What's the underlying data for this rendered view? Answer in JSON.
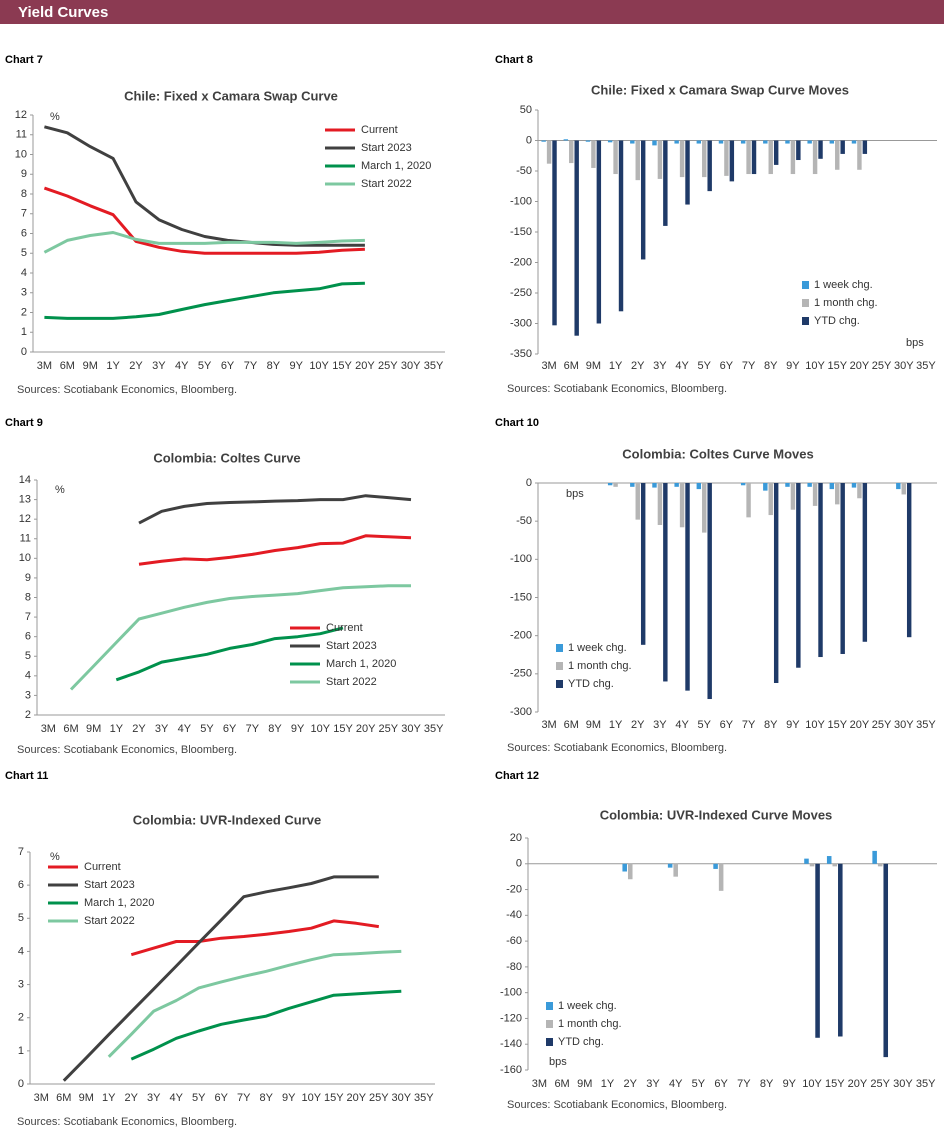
{
  "header": {
    "title": "Yield Curves"
  },
  "chart_data": [
    {
      "type": "line",
      "label": "Chart 7",
      "title": "Chile: Fixed x Camara Swap Curve",
      "unit_label": "%",
      "source": "Sources: Scotiabank Economics, Bloomberg.",
      "legend": "upper right",
      "categories": [
        "3M",
        "6M",
        "9M",
        "1Y",
        "2Y",
        "3Y",
        "4Y",
        "5Y",
        "6Y",
        "7Y",
        "8Y",
        "9Y",
        "10Y",
        "15Y",
        "20Y",
        "25Y",
        "30Y",
        "35Y"
      ],
      "ylim": [
        0,
        12
      ],
      "yticks": [
        0,
        1,
        2,
        3,
        4,
        5,
        6,
        7,
        8,
        9,
        10,
        11,
        12
      ],
      "series": [
        {
          "name": "Current",
          "color": "#e31b23",
          "values": [
            8.3,
            7.9,
            7.4,
            6.95,
            5.6,
            5.3,
            5.1,
            5.0,
            5.0,
            5.0,
            5.0,
            5.0,
            5.05,
            5.15,
            5.2,
            null,
            null,
            null
          ]
        },
        {
          "name": "Start 2023",
          "color": "#404040",
          "values": [
            11.4,
            11.1,
            10.4,
            9.8,
            7.6,
            6.7,
            6.2,
            5.85,
            5.65,
            5.55,
            5.45,
            5.4,
            5.4,
            5.4,
            5.4,
            null,
            null,
            null
          ]
        },
        {
          "name": "March 1, 2020",
          "color": "#00914c",
          "values": [
            1.75,
            1.7,
            1.7,
            1.7,
            1.78,
            1.9,
            2.15,
            2.4,
            2.6,
            2.8,
            3.0,
            3.1,
            3.2,
            3.45,
            3.48,
            null,
            null,
            null
          ]
        },
        {
          "name": "Start 2022",
          "color": "#7dc8a0",
          "values": [
            5.05,
            5.65,
            5.9,
            6.05,
            5.7,
            5.5,
            5.5,
            5.5,
            5.55,
            5.55,
            5.55,
            5.5,
            5.55,
            5.62,
            5.65,
            null,
            null,
            null
          ]
        }
      ]
    },
    {
      "type": "bar",
      "label": "Chart 8",
      "title": "Chile: Fixed x Camara Swap Curve Moves",
      "unit_label": "bps",
      "source": "Sources: Scotiabank Economics, Bloomberg.",
      "legend": "lower right",
      "categories": [
        "3M",
        "6M",
        "9M",
        "1Y",
        "2Y",
        "3Y",
        "4Y",
        "5Y",
        "6Y",
        "7Y",
        "8Y",
        "9Y",
        "10Y",
        "15Y",
        "20Y",
        "25Y",
        "30Y",
        "35Y"
      ],
      "ylim": [
        -350,
        50
      ],
      "yticks": [
        -350,
        -300,
        -250,
        -200,
        -150,
        -100,
        -50,
        0,
        50
      ],
      "series": [
        {
          "name": "1 week chg.",
          "color": "#3a9ad9",
          "values": [
            -2,
            2,
            -2,
            -3,
            -5,
            -8,
            -5,
            -5,
            -5,
            -5,
            -5,
            -5,
            -5,
            -5,
            -5,
            null,
            null,
            null
          ]
        },
        {
          "name": "1 month chg.",
          "color": "#b5b5b5",
          "values": [
            -38,
            -37,
            -45,
            -55,
            -65,
            -63,
            -60,
            -60,
            -58,
            -55,
            -55,
            -55,
            -55,
            -48,
            -48,
            null,
            null,
            null
          ]
        },
        {
          "name": "YTD chg.",
          "color": "#1f3a68",
          "values": [
            -303,
            -320,
            -300,
            -280,
            -195,
            -140,
            -105,
            -83,
            -67,
            -55,
            -40,
            -32,
            -30,
            -22,
            -22,
            null,
            null,
            null
          ]
        }
      ]
    },
    {
      "type": "line",
      "label": "Chart 9",
      "title": "Colombia: Coltes Curve",
      "unit_label": "%",
      "source": "Sources: Scotiabank Economics, Bloomberg.",
      "legend": "lower right",
      "categories": [
        "3M",
        "6M",
        "9M",
        "1Y",
        "2Y",
        "3Y",
        "4Y",
        "5Y",
        "6Y",
        "7Y",
        "8Y",
        "9Y",
        "10Y",
        "15Y",
        "20Y",
        "25Y",
        "30Y",
        "35Y"
      ],
      "ylim": [
        2,
        14
      ],
      "yticks": [
        2,
        3,
        4,
        5,
        6,
        7,
        8,
        9,
        10,
        11,
        12,
        13,
        14
      ],
      "series": [
        {
          "name": "Current",
          "color": "#e31b23",
          "values": [
            null,
            null,
            null,
            null,
            9.7,
            9.85,
            9.97,
            9.93,
            10.05,
            10.2,
            10.4,
            10.55,
            10.75,
            10.78,
            11.15,
            11.1,
            11.05,
            null
          ]
        },
        {
          "name": "Start 2023",
          "color": "#404040",
          "values": [
            null,
            null,
            null,
            null,
            11.8,
            12.4,
            12.65,
            12.8,
            12.85,
            12.88,
            12.92,
            12.95,
            13.0,
            13.0,
            13.2,
            13.1,
            13.0,
            null
          ]
        },
        {
          "name": "March 1, 2020",
          "color": "#00914c",
          "values": [
            null,
            null,
            null,
            3.8,
            4.2,
            4.7,
            4.9,
            5.1,
            5.4,
            5.6,
            5.9,
            6.0,
            6.15,
            6.45,
            null,
            null,
            null,
            null
          ]
        },
        {
          "name": "Start 2022",
          "color": "#7dc8a0",
          "values": [
            null,
            3.3,
            4.5,
            5.7,
            6.9,
            7.2,
            7.5,
            7.75,
            7.95,
            8.05,
            8.12,
            8.2,
            8.35,
            8.5,
            8.55,
            8.6,
            8.6,
            null
          ]
        }
      ]
    },
    {
      "type": "bar",
      "label": "Chart 10",
      "title": "Colombia: Coltes Curve Moves",
      "unit_label": "bps",
      "source": "Sources: Scotiabank Economics, Bloomberg.",
      "legend": "lower left",
      "categories": [
        "3M",
        "6M",
        "9M",
        "1Y",
        "2Y",
        "3Y",
        "4Y",
        "5Y",
        "6Y",
        "7Y",
        "8Y",
        "9Y",
        "10Y",
        "15Y",
        "20Y",
        "25Y",
        "30Y",
        "35Y"
      ],
      "ylim": [
        -300,
        0
      ],
      "yticks": [
        -300,
        -250,
        -200,
        -150,
        -100,
        -50,
        0
      ],
      "series": [
        {
          "name": "1 week chg.",
          "color": "#3a9ad9",
          "values": [
            null,
            null,
            null,
            -3,
            -5,
            -6,
            -5,
            -8,
            null,
            -3,
            -10,
            -5,
            -5,
            -8,
            -6,
            null,
            -8,
            null
          ]
        },
        {
          "name": "1 month chg.",
          "color": "#b5b5b5",
          "values": [
            null,
            null,
            null,
            -5,
            -48,
            -55,
            -58,
            -65,
            null,
            -45,
            -42,
            -35,
            -30,
            -28,
            -20,
            null,
            -15,
            null
          ]
        },
        {
          "name": "YTD chg.",
          "color": "#1f3a68",
          "values": [
            null,
            null,
            null,
            null,
            -212,
            -260,
            -272,
            -283,
            null,
            null,
            -262,
            -242,
            -228,
            -224,
            -208,
            null,
            -202,
            null
          ]
        }
      ]
    },
    {
      "type": "line",
      "label": "Chart 11",
      "title": "Colombia: UVR-Indexed Curve",
      "unit_label": "%",
      "source": "Sources: Scotiabank Economics, Bloomberg.",
      "legend": "upper left",
      "categories": [
        "3M",
        "6M",
        "9M",
        "1Y",
        "2Y",
        "3Y",
        "4Y",
        "5Y",
        "6Y",
        "7Y",
        "8Y",
        "9Y",
        "10Y",
        "15Y",
        "20Y",
        "25Y",
        "30Y",
        "35Y"
      ],
      "ylim": [
        0,
        7
      ],
      "yticks": [
        0,
        1,
        2,
        3,
        4,
        5,
        6,
        7
      ],
      "series": [
        {
          "name": "Current",
          "color": "#e31b23",
          "values": [
            null,
            null,
            null,
            null,
            3.9,
            4.1,
            4.3,
            4.3,
            4.4,
            4.45,
            4.52,
            4.6,
            4.7,
            4.92,
            4.85,
            4.75,
            null,
            null
          ]
        },
        {
          "name": "Start 2023",
          "color": "#404040",
          "values": [
            null,
            0.1,
            0.79,
            1.49,
            2.18,
            2.87,
            3.56,
            4.26,
            4.95,
            5.65,
            5.8,
            5.92,
            6.05,
            6.25,
            6.25,
            6.25,
            null,
            null
          ]
        },
        {
          "name": "March 1, 2020",
          "color": "#00914c",
          "values": [
            null,
            null,
            null,
            null,
            0.75,
            1.05,
            1.38,
            1.6,
            1.8,
            1.93,
            2.05,
            2.28,
            2.48,
            2.68,
            2.72,
            2.76,
            2.8,
            null
          ]
        },
        {
          "name": "Start 2022",
          "color": "#7dc8a0",
          "values": [
            null,
            null,
            null,
            0.82,
            1.5,
            2.2,
            2.52,
            2.9,
            3.08,
            3.25,
            3.4,
            3.58,
            3.75,
            3.9,
            3.93,
            3.97,
            4.0,
            null
          ]
        }
      ]
    },
    {
      "type": "bar",
      "label": "Chart 12",
      "title": "Colombia: UVR-Indexed Curve Moves",
      "unit_label": "bps",
      "source": "Sources: Scotiabank Economics, Bloomberg.",
      "legend": "lower left",
      "categories": [
        "3M",
        "6M",
        "9M",
        "1Y",
        "2Y",
        "3Y",
        "4Y",
        "5Y",
        "6Y",
        "7Y",
        "8Y",
        "9Y",
        "10Y",
        "15Y",
        "20Y",
        "25Y",
        "30Y",
        "35Y"
      ],
      "ylim": [
        -160,
        20
      ],
      "yticks": [
        -160,
        -140,
        -120,
        -100,
        -80,
        -60,
        -40,
        -20,
        0,
        20
      ],
      "series": [
        {
          "name": "1 week chg.",
          "color": "#3a9ad9",
          "values": [
            null,
            null,
            null,
            null,
            -6,
            null,
            -3,
            null,
            -4,
            null,
            null,
            null,
            4,
            6,
            null,
            10,
            null,
            null
          ]
        },
        {
          "name": "1 month chg.",
          "color": "#b5b5b5",
          "values": [
            null,
            null,
            null,
            null,
            -12,
            null,
            -10,
            null,
            -21,
            null,
            null,
            null,
            -2,
            -2,
            null,
            -2,
            null,
            null
          ]
        },
        {
          "name": "YTD chg.",
          "color": "#1f3a68",
          "values": [
            null,
            null,
            null,
            null,
            null,
            null,
            null,
            null,
            null,
            null,
            null,
            null,
            -135,
            -134,
            null,
            -150,
            null,
            null
          ]
        }
      ]
    }
  ]
}
